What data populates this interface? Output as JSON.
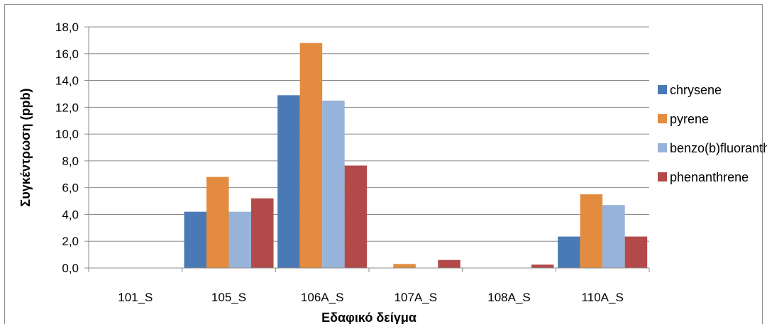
{
  "chart_data": {
    "type": "bar",
    "title": "",
    "xlabel": "Εδαφικό δείγμα",
    "ylabel": "Συγκέντρωση (ppb)",
    "ylim": [
      0,
      18
    ],
    "ytick_step": 2,
    "ytick_labels": [
      "0,0",
      "2,0",
      "4,0",
      "6,0",
      "8,0",
      "10,0",
      "12,0",
      "14,0",
      "16,0",
      "18,0"
    ],
    "categories": [
      "101_S",
      "105_S",
      "106A_S",
      "107A_S",
      "108A_S",
      "110A_S"
    ],
    "grid": true,
    "legend_position": "right",
    "series": [
      {
        "name": "chrysene",
        "color": "#4a7ab5",
        "values": [
          0,
          4.2,
          12.9,
          0,
          0,
          2.35
        ]
      },
      {
        "name": "pyrene",
        "color": "#e38b3e",
        "values": [
          0,
          6.8,
          16.8,
          0.3,
          0,
          5.5
        ]
      },
      {
        "name": "benzo(b)fluoranthene",
        "color": "#98b3da",
        "values": [
          0,
          4.2,
          12.5,
          0,
          0,
          4.7
        ]
      },
      {
        "name": "phenanthrene",
        "color": "#b34a4a",
        "values": [
          0,
          5.2,
          7.65,
          0.6,
          0.25,
          2.35
        ]
      }
    ]
  }
}
